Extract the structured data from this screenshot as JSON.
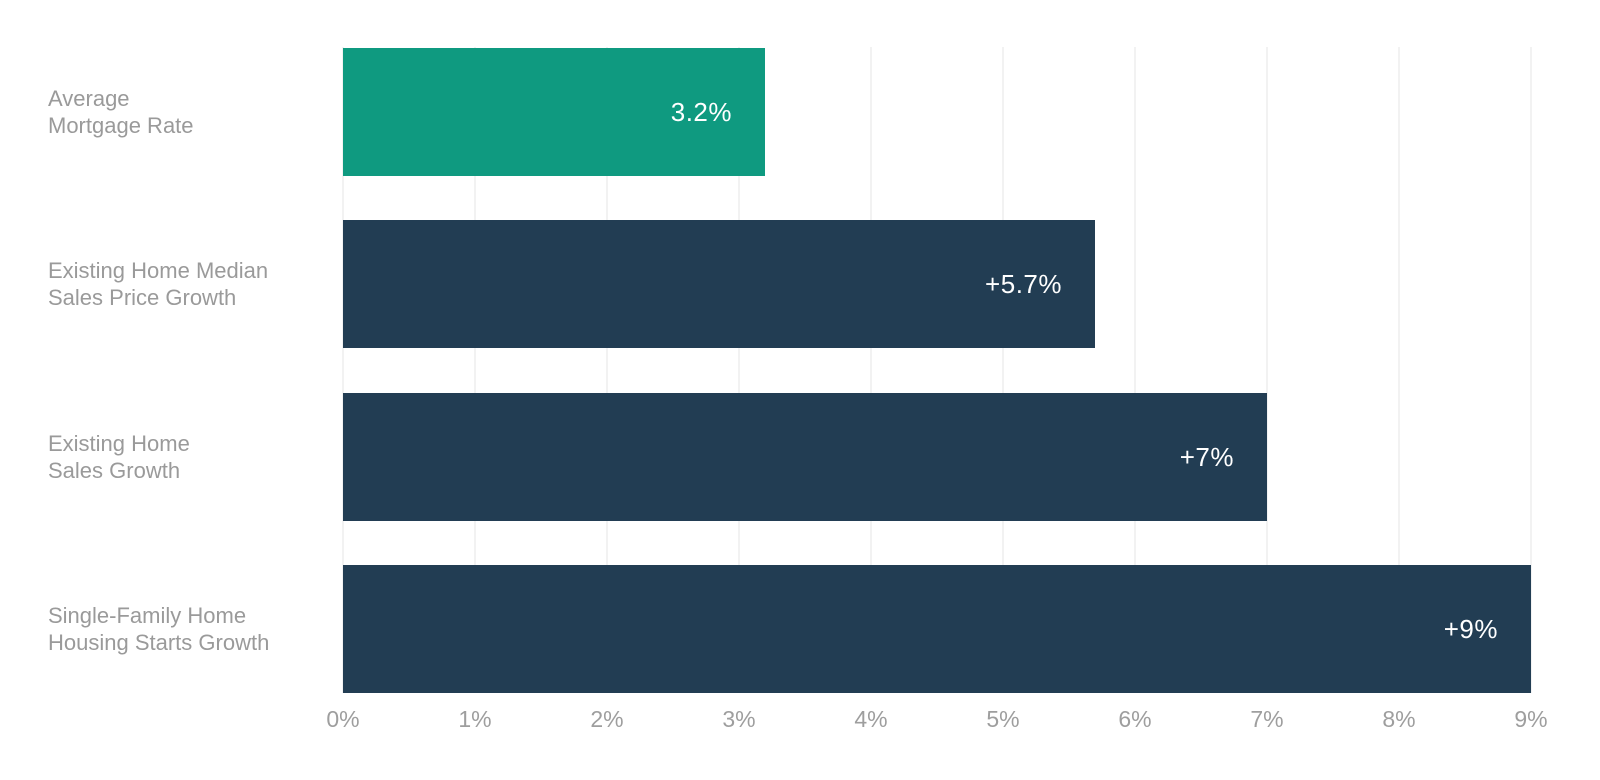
{
  "chart_data": {
    "type": "bar",
    "orientation": "horizontal",
    "title": "",
    "xlabel": "",
    "ylabel": "",
    "categories": [
      "Average Mortgage Rate",
      "Existing Home Median Sales Price Growth",
      "Existing Home Sales Growth",
      "Single-Family Home Housing Starts Growth"
    ],
    "rows": [
      {
        "label": "Average\nMortgage Rate",
        "value": 3.2,
        "value_label": "3.2%",
        "color": "teal"
      },
      {
        "label": "Existing Home Median\nSales Price Growth",
        "value": 5.7,
        "value_label": "+5.7%",
        "color": "navy"
      },
      {
        "label": "Existing Home\nSales Growth",
        "value": 7,
        "value_label": "+7%",
        "color": "navy"
      },
      {
        "label": "Single-Family Home\nHousing Starts Growth",
        "value": 9,
        "value_label": "+9%",
        "color": "navy"
      }
    ],
    "x_axis": {
      "min": 0,
      "max": 9,
      "tick_values": [
        0,
        1,
        2,
        3,
        4,
        5,
        6,
        7,
        8,
        9
      ],
      "tick_labels": [
        "0%",
        "1%",
        "2%",
        "3%",
        "4%",
        "5%",
        "6%",
        "7%",
        "8%",
        "9%"
      ]
    },
    "grid": "vertical",
    "legend": "none",
    "colors": {
      "teal": "#0f9a80",
      "navy": "#223d53",
      "label_text": "#9a9a9a",
      "axis_text": "#9e9e9e",
      "gridline": "#f2f2f2",
      "value_text": "#ffffff",
      "background": "#ffffff"
    }
  }
}
